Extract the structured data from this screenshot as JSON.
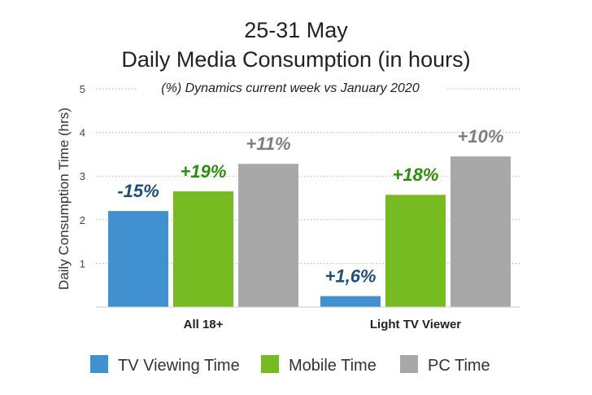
{
  "chart_data": {
    "type": "bar",
    "title_line1": "25-31 May",
    "title_line2": "Daily Media Consumption (in hours)",
    "subtitle": "(%) Dynamics current week  vs January 2020",
    "ylabel": "Daily Consumption Time (hrs)",
    "ylim": [
      0,
      5
    ],
    "yticks": [
      "1",
      "2",
      "3",
      "4",
      "5"
    ],
    "grid": true,
    "legend_position": "bottom",
    "categories": [
      "All 18+",
      "Light TV Viewer"
    ],
    "series": [
      {
        "name": "TV Viewing Time",
        "color": "#4190cf",
        "label_color": "#1f4e79",
        "values": [
          2.2,
          0.25
        ],
        "labels": [
          "-15%",
          "+1,6%"
        ]
      },
      {
        "name": "Mobile Time",
        "color": "#77bb22",
        "label_color": "#2e8b12",
        "values": [
          2.65,
          2.57
        ],
        "labels": [
          "+19%",
          "+18%"
        ]
      },
      {
        "name": "PC Time",
        "color": "#a8a8a8",
        "label_color": "#7f7f7f",
        "values": [
          3.28,
          3.45
        ],
        "labels": [
          "+11%",
          "+10%"
        ]
      }
    ]
  }
}
